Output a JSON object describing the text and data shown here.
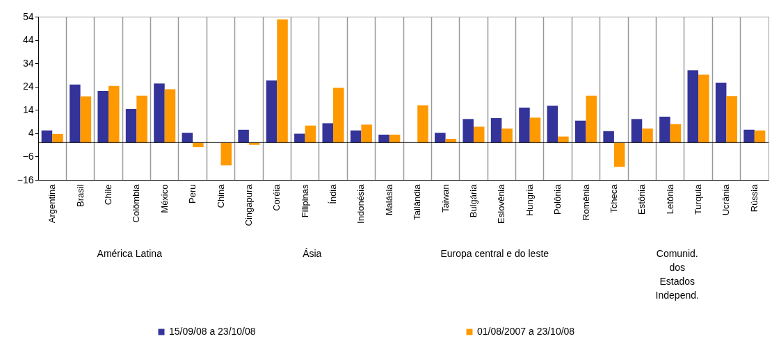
{
  "chart_data": {
    "type": "bar",
    "categories": [
      "Argentina",
      "Brasil",
      "Chile",
      "Colômbia",
      "México",
      "Peru",
      "China",
      "Cingapura",
      "Coréia",
      "Filipinas",
      "Índia",
      "Indonésia",
      "Malásia",
      "Tailândia",
      "Taiwan",
      "Bulgária",
      "Eslovênia",
      "Hungria",
      "Polônia",
      "Romênia",
      "Tcheca",
      "Estônia",
      "Letônia",
      "Turquia",
      "Ucrânia",
      "Rússia"
    ],
    "series": [
      {
        "name": "15/09/08 a 23/10/08",
        "color": "#333399",
        "values": [
          5.2,
          24.9,
          22.1,
          14.4,
          25.3,
          4.2,
          0,
          5.5,
          26.7,
          3.8,
          8.3,
          5.2,
          3.4,
          0,
          4.2,
          10.1,
          10.5,
          15.0,
          15.8,
          9.4,
          4.9,
          10.1,
          11.1,
          31.0,
          25.7,
          5.5
        ]
      },
      {
        "name": "01/08/2007 a 23/10/08",
        "color": "#ff9900",
        "values": [
          3.7,
          19.8,
          24.3,
          20.1,
          22.9,
          -2.0,
          -9.8,
          -1.0,
          52.8,
          7.3,
          23.5,
          7.7,
          3.4,
          16.0,
          1.6,
          6.8,
          6.0,
          10.7,
          2.6,
          20.1,
          -10.4,
          6.0,
          7.9,
          29.1,
          20.0,
          5.2
        ]
      }
    ],
    "ylim": [
      -16,
      54
    ],
    "yticks": [
      -16,
      -6,
      4,
      14,
      24,
      34,
      44,
      54
    ],
    "grid": "x",
    "legend": "bottom",
    "annotations": [
      "América Latina",
      "Ásia",
      "Europa central e do leste",
      "Comunid.\ndos\nEstados\nIndepend."
    ]
  }
}
